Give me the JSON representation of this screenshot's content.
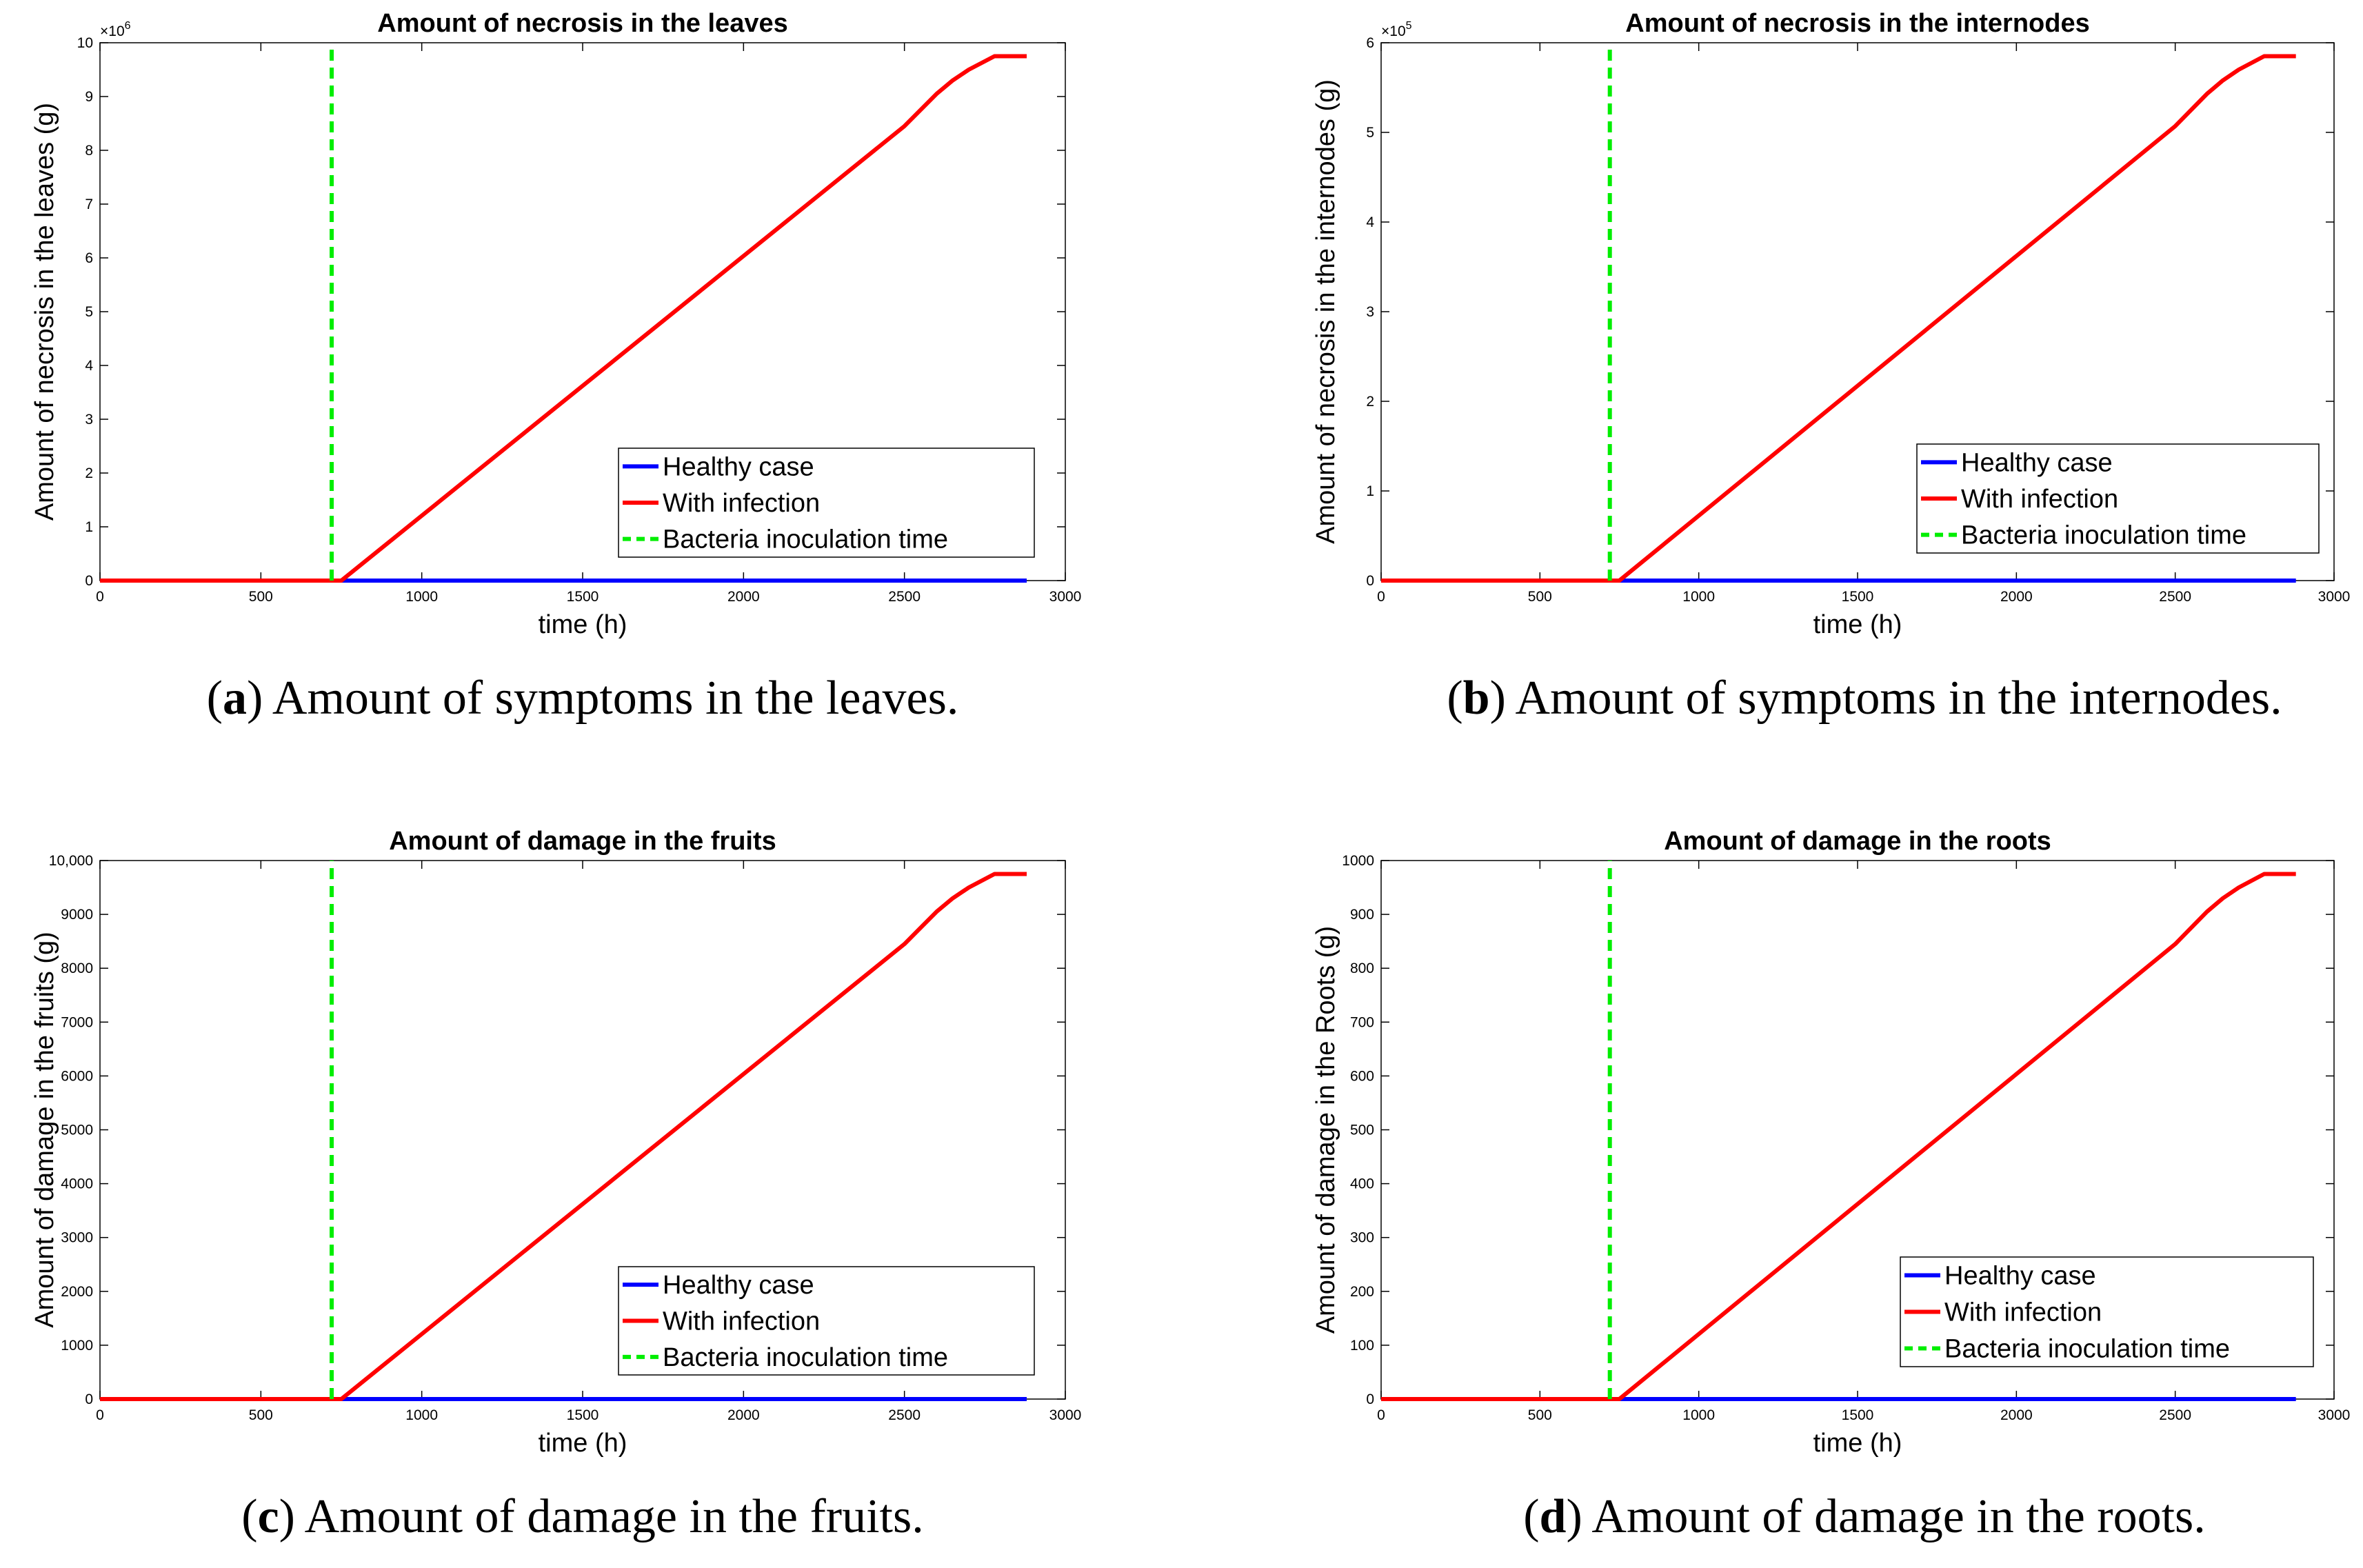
{
  "colors": {
    "healthy": "#0000ff",
    "infection": "#ff0000",
    "inoculation": "#00ee00",
    "frame": "#000000"
  },
  "legend": {
    "entries": [
      "Healthy case",
      "With infection",
      "Bacteria inoculation time"
    ]
  },
  "chart_data": [
    {
      "type": "line",
      "title": "Amount of necrosis in the leaves",
      "xlabel": "time (h)",
      "ylabel": "Amount of necrosis in the leaves (g)",
      "exponent_label": "×10",
      "exponent_power": "6",
      "xlim": [
        0,
        3000
      ],
      "ylim": [
        0,
        10
      ],
      "xticks": [
        "0",
        "500",
        "1000",
        "1500",
        "2000",
        "2500",
        "3000"
      ],
      "yticks": [
        "0",
        "1",
        "2",
        "3",
        "4",
        "5",
        "6",
        "7",
        "8",
        "9",
        "10"
      ],
      "caption_letter": "a",
      "caption_text": " Amount of symptoms in the leaves.",
      "legend_position": "lower-right",
      "series": [
        {
          "name": "Healthy case",
          "x": [
            0,
            2880
          ],
          "y": [
            0,
            0
          ]
        },
        {
          "name": "With infection",
          "x": [
            0,
            720,
            750,
            2500,
            2550,
            2600,
            2650,
            2700,
            2780,
            2880
          ],
          "y": [
            0,
            0,
            0,
            8.45,
            8.75,
            9.05,
            9.3,
            9.5,
            9.75,
            9.75
          ]
        },
        {
          "name": "Bacteria inoculation time",
          "x": [
            720,
            720
          ],
          "y": [
            0,
            10
          ]
        }
      ]
    },
    {
      "type": "line",
      "title": "Amount of necrosis in the internodes",
      "xlabel": "time (h)",
      "ylabel": "Amount of necrosis in the internodes (g)",
      "exponent_label": "×10",
      "exponent_power": "5",
      "xlim": [
        0,
        3000
      ],
      "ylim": [
        0,
        6
      ],
      "xticks": [
        "0",
        "500",
        "1000",
        "1500",
        "2000",
        "2500",
        "3000"
      ],
      "yticks": [
        "0",
        "1",
        "2",
        "3",
        "4",
        "5",
        "6"
      ],
      "caption_letter": "b",
      "caption_text": " Amount of symptoms in the internodes.",
      "legend_position": "lower-right",
      "series": [
        {
          "name": "Healthy case",
          "x": [
            0,
            2880
          ],
          "y": [
            0,
            0
          ]
        },
        {
          "name": "With infection",
          "x": [
            0,
            720,
            750,
            2500,
            2550,
            2600,
            2650,
            2700,
            2780,
            2880
          ],
          "y": [
            0,
            0,
            0,
            5.07,
            5.25,
            5.43,
            5.58,
            5.7,
            5.85,
            5.85
          ]
        },
        {
          "name": "Bacteria inoculation time",
          "x": [
            720,
            720
          ],
          "y": [
            0,
            6
          ]
        }
      ]
    },
    {
      "type": "line",
      "title": "Amount of damage in the fruits",
      "xlabel": "time (h)",
      "ylabel": "Amount of damage in the fruits (g)",
      "exponent_label": "",
      "exponent_power": "",
      "xlim": [
        0,
        3000
      ],
      "ylim": [
        0,
        10000
      ],
      "xticks": [
        "0",
        "500",
        "1000",
        "1500",
        "2000",
        "2500",
        "3000"
      ],
      "yticks": [
        "0",
        "1000",
        "2000",
        "3000",
        "4000",
        "5000",
        "6000",
        "7000",
        "8000",
        "9000",
        "10,000"
      ],
      "caption_letter": "c",
      "caption_text": " Amount of damage in the fruits.",
      "legend_position": "lower-right",
      "series": [
        {
          "name": "Healthy case",
          "x": [
            0,
            2880
          ],
          "y": [
            0,
            0
          ]
        },
        {
          "name": "With infection",
          "x": [
            0,
            720,
            750,
            2500,
            2550,
            2600,
            2650,
            2700,
            2780,
            2880
          ],
          "y": [
            0,
            0,
            0,
            8450,
            8750,
            9050,
            9300,
            9500,
            9750,
            9750
          ]
        },
        {
          "name": "Bacteria inoculation time",
          "x": [
            720,
            720
          ],
          "y": [
            0,
            10000
          ]
        }
      ]
    },
    {
      "type": "line",
      "title": "Amount of damage in the roots",
      "xlabel": "time (h)",
      "ylabel": "Amount of damage in the Roots (g)",
      "exponent_label": "",
      "exponent_power": "",
      "xlim": [
        0,
        3000
      ],
      "ylim": [
        0,
        1000
      ],
      "xticks": [
        "0",
        "500",
        "1000",
        "1500",
        "2000",
        "2500",
        "3000"
      ],
      "yticks": [
        "0",
        "100",
        "200",
        "300",
        "400",
        "500",
        "600",
        "700",
        "800",
        "900",
        "1000"
      ],
      "caption_letter": "d",
      "caption_text": " Amount of damage in the roots.",
      "legend_position": "lower-right",
      "series": [
        {
          "name": "Healthy case",
          "x": [
            0,
            2880
          ],
          "y": [
            0,
            0
          ]
        },
        {
          "name": "With infection",
          "x": [
            0,
            720,
            750,
            2500,
            2550,
            2600,
            2650,
            2700,
            2780,
            2880
          ],
          "y": [
            0,
            0,
            0,
            845,
            875,
            905,
            930,
            950,
            975,
            975
          ]
        },
        {
          "name": "Bacteria inoculation time",
          "x": [
            720,
            720
          ],
          "y": [
            0,
            1000
          ]
        }
      ]
    }
  ]
}
